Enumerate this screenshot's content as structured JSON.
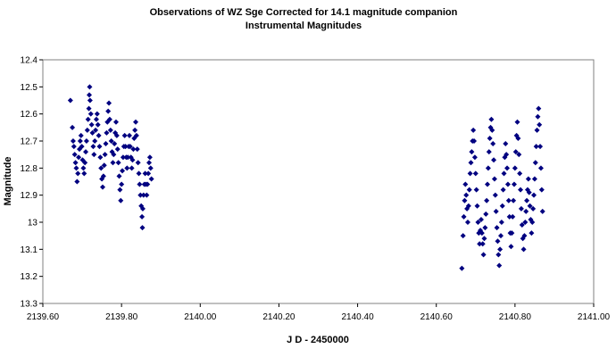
{
  "chart_data": {
    "type": "scatter",
    "title": "Observations of WZ Sge Corrected for 14.1 magnitude companion",
    "subtitle": "Instrumental Magnitudes",
    "xlabel": "J D - 2450000",
    "ylabel": "Magnitude",
    "xlim": [
      2139.6,
      2141.0
    ],
    "ylim": [
      12.4,
      13.3
    ],
    "y_reversed": true,
    "grid": false,
    "legend": "none",
    "marker": "diamond",
    "marker_color": "#000080",
    "x_tick_labels": [
      "2139.60",
      "2139.80",
      "2140.00",
      "2140.20",
      "2140.40",
      "2140.60",
      "2140.80",
      "2141.00"
    ],
    "y_tick_labels": [
      "12.4",
      "12.5",
      "12.6",
      "12.7",
      "12.8",
      "12.9",
      "13",
      "13.1",
      "13.2",
      "13.3"
    ],
    "series": [
      {
        "values": [
          [
            2139.67,
            12.55
          ],
          [
            2139.675,
            12.65
          ],
          [
            2139.677,
            12.7
          ],
          [
            2139.679,
            12.72
          ],
          [
            2139.681,
            12.75
          ],
          [
            2139.683,
            12.78
          ],
          [
            2139.685,
            12.8
          ],
          [
            2139.687,
            12.85
          ],
          [
            2139.689,
            12.82
          ],
          [
            2139.691,
            12.76
          ],
          [
            2139.693,
            12.73
          ],
          [
            2139.695,
            12.7
          ],
          [
            2139.697,
            12.68
          ],
          [
            2139.699,
            12.72
          ],
          [
            2139.701,
            12.77
          ],
          [
            2139.703,
            12.8
          ],
          [
            2139.705,
            12.82
          ],
          [
            2139.707,
            12.78
          ],
          [
            2139.709,
            12.74
          ],
          [
            2139.711,
            12.7
          ],
          [
            2139.713,
            12.66
          ],
          [
            2139.715,
            12.62
          ],
          [
            2139.717,
            12.58
          ],
          [
            2139.718,
            12.53
          ],
          [
            2139.719,
            12.5
          ],
          [
            2139.72,
            12.55
          ],
          [
            2139.722,
            12.6
          ],
          [
            2139.724,
            12.64
          ],
          [
            2139.726,
            12.67
          ],
          [
            2139.728,
            12.72
          ],
          [
            2139.73,
            12.75
          ],
          [
            2139.732,
            12.7
          ],
          [
            2139.734,
            12.66
          ],
          [
            2139.736,
            12.62
          ],
          [
            2139.738,
            12.6
          ],
          [
            2139.74,
            12.64
          ],
          [
            2139.742,
            12.68
          ],
          [
            2139.744,
            12.72
          ],
          [
            2139.746,
            12.76
          ],
          [
            2139.748,
            12.8
          ],
          [
            2139.75,
            12.84
          ],
          [
            2139.752,
            12.87
          ],
          [
            2139.754,
            12.83
          ],
          [
            2139.756,
            12.79
          ],
          [
            2139.758,
            12.75
          ],
          [
            2139.76,
            12.71
          ],
          [
            2139.762,
            12.67
          ],
          [
            2139.764,
            12.63
          ],
          [
            2139.766,
            12.59
          ],
          [
            2139.768,
            12.56
          ],
          [
            2139.77,
            12.62
          ],
          [
            2139.772,
            12.66
          ],
          [
            2139.774,
            12.7
          ],
          [
            2139.776,
            12.74
          ],
          [
            2139.778,
            12.78
          ],
          [
            2139.78,
            12.75
          ],
          [
            2139.782,
            12.71
          ],
          [
            2139.784,
            12.67
          ],
          [
            2139.786,
            12.63
          ],
          [
            2139.788,
            12.68
          ],
          [
            2139.79,
            12.73
          ],
          [
            2139.792,
            12.78
          ],
          [
            2139.794,
            12.83
          ],
          [
            2139.796,
            12.88
          ],
          [
            2139.798,
            12.92
          ],
          [
            2139.8,
            12.86
          ],
          [
            2139.802,
            12.81
          ],
          [
            2139.804,
            12.76
          ],
          [
            2139.806,
            12.72
          ],
          [
            2139.808,
            12.68
          ],
          [
            2139.81,
            12.72
          ],
          [
            2139.812,
            12.76
          ],
          [
            2139.814,
            12.8
          ],
          [
            2139.816,
            12.76
          ],
          [
            2139.818,
            12.72
          ],
          [
            2139.82,
            12.68
          ],
          [
            2139.822,
            12.72
          ],
          [
            2139.824,
            12.76
          ],
          [
            2139.826,
            12.8
          ],
          [
            2139.828,
            12.77
          ],
          [
            2139.83,
            12.73
          ],
          [
            2139.832,
            12.69
          ],
          [
            2139.834,
            12.66
          ],
          [
            2139.836,
            12.63
          ],
          [
            2139.838,
            12.68
          ],
          [
            2139.84,
            12.73
          ],
          [
            2139.842,
            12.78
          ],
          [
            2139.844,
            12.82
          ],
          [
            2139.846,
            12.86
          ],
          [
            2139.848,
            12.9
          ],
          [
            2139.85,
            12.94
          ],
          [
            2139.852,
            12.98
          ],
          [
            2139.853,
            13.02
          ],
          [
            2139.854,
            12.95
          ],
          [
            2139.856,
            12.9
          ],
          [
            2139.858,
            12.86
          ],
          [
            2139.86,
            12.82
          ],
          [
            2139.862,
            12.86
          ],
          [
            2139.864,
            12.9
          ],
          [
            2139.866,
            12.86
          ],
          [
            2139.868,
            12.82
          ],
          [
            2139.87,
            12.78
          ],
          [
            2139.872,
            12.76
          ],
          [
            2139.874,
            12.8
          ],
          [
            2139.876,
            12.84
          ]
        ]
      },
      {
        "values": [
          [
            2140.665,
            13.17
          ],
          [
            2140.668,
            13.05
          ],
          [
            2140.67,
            12.98
          ],
          [
            2140.672,
            12.92
          ],
          [
            2140.674,
            12.86
          ],
          [
            2140.676,
            12.9
          ],
          [
            2140.678,
            12.95
          ],
          [
            2140.68,
            13.0
          ],
          [
            2140.682,
            12.94
          ],
          [
            2140.684,
            12.88
          ],
          [
            2140.686,
            12.82
          ],
          [
            2140.688,
            12.78
          ],
          [
            2140.69,
            12.74
          ],
          [
            2140.692,
            12.7
          ],
          [
            2140.694,
            12.66
          ],
          [
            2140.696,
            12.7
          ],
          [
            2140.698,
            12.76
          ],
          [
            2140.7,
            12.82
          ],
          [
            2140.702,
            12.88
          ],
          [
            2140.704,
            12.94
          ],
          [
            2140.706,
            13.0
          ],
          [
            2140.708,
            13.04
          ],
          [
            2140.71,
            13.08
          ],
          [
            2140.712,
            13.03
          ],
          [
            2140.714,
            12.99
          ],
          [
            2140.716,
            13.04
          ],
          [
            2140.718,
            13.08
          ],
          [
            2140.72,
            13.12
          ],
          [
            2140.722,
            13.06
          ],
          [
            2140.724,
            13.02
          ],
          [
            2140.726,
            12.97
          ],
          [
            2140.728,
            12.92
          ],
          [
            2140.73,
            12.86
          ],
          [
            2140.732,
            12.8
          ],
          [
            2140.734,
            12.74
          ],
          [
            2140.736,
            12.69
          ],
          [
            2140.738,
            12.65
          ],
          [
            2140.74,
            12.62
          ],
          [
            2140.742,
            12.66
          ],
          [
            2140.744,
            12.71
          ],
          [
            2140.746,
            12.77
          ],
          [
            2140.748,
            12.84
          ],
          [
            2140.75,
            12.9
          ],
          [
            2140.752,
            12.96
          ],
          [
            2140.754,
            13.02
          ],
          [
            2140.756,
            13.07
          ],
          [
            2140.758,
            13.12
          ],
          [
            2140.76,
            13.16
          ],
          [
            2140.762,
            13.1
          ],
          [
            2140.764,
            13.05
          ],
          [
            2140.766,
            13.0
          ],
          [
            2140.768,
            12.94
          ],
          [
            2140.77,
            12.88
          ],
          [
            2140.772,
            12.82
          ],
          [
            2140.774,
            12.76
          ],
          [
            2140.776,
            12.71
          ],
          [
            2140.778,
            12.75
          ],
          [
            2140.78,
            12.8
          ],
          [
            2140.782,
            12.86
          ],
          [
            2140.784,
            12.92
          ],
          [
            2140.786,
            12.98
          ],
          [
            2140.788,
            13.04
          ],
          [
            2140.79,
            13.09
          ],
          [
            2140.792,
            13.04
          ],
          [
            2140.794,
            12.98
          ],
          [
            2140.796,
            12.92
          ],
          [
            2140.798,
            12.86
          ],
          [
            2140.8,
            12.8
          ],
          [
            2140.802,
            12.74
          ],
          [
            2140.804,
            12.68
          ],
          [
            2140.806,
            12.63
          ],
          [
            2140.808,
            12.69
          ],
          [
            2140.81,
            12.75
          ],
          [
            2140.812,
            12.82
          ],
          [
            2140.814,
            12.88
          ],
          [
            2140.816,
            12.95
          ],
          [
            2140.818,
            13.01
          ],
          [
            2140.82,
            13.06
          ],
          [
            2140.822,
            13.1
          ],
          [
            2140.824,
            13.05
          ],
          [
            2140.826,
            13.0
          ],
          [
            2140.828,
            12.96
          ],
          [
            2140.83,
            12.92
          ],
          [
            2140.832,
            12.88
          ],
          [
            2140.834,
            12.84
          ],
          [
            2140.836,
            12.89
          ],
          [
            2140.838,
            12.94
          ],
          [
            2140.84,
            12.99
          ],
          [
            2140.842,
            13.04
          ],
          [
            2140.844,
            13.0
          ],
          [
            2140.846,
            12.95
          ],
          [
            2140.848,
            12.9
          ],
          [
            2140.85,
            12.84
          ],
          [
            2140.852,
            12.78
          ],
          [
            2140.854,
            12.72
          ],
          [
            2140.856,
            12.66
          ],
          [
            2140.858,
            12.61
          ],
          [
            2140.86,
            12.58
          ],
          [
            2140.862,
            12.64
          ],
          [
            2140.864,
            12.72
          ],
          [
            2140.866,
            12.8
          ],
          [
            2140.868,
            12.88
          ],
          [
            2140.87,
            12.96
          ]
        ]
      }
    ]
  }
}
